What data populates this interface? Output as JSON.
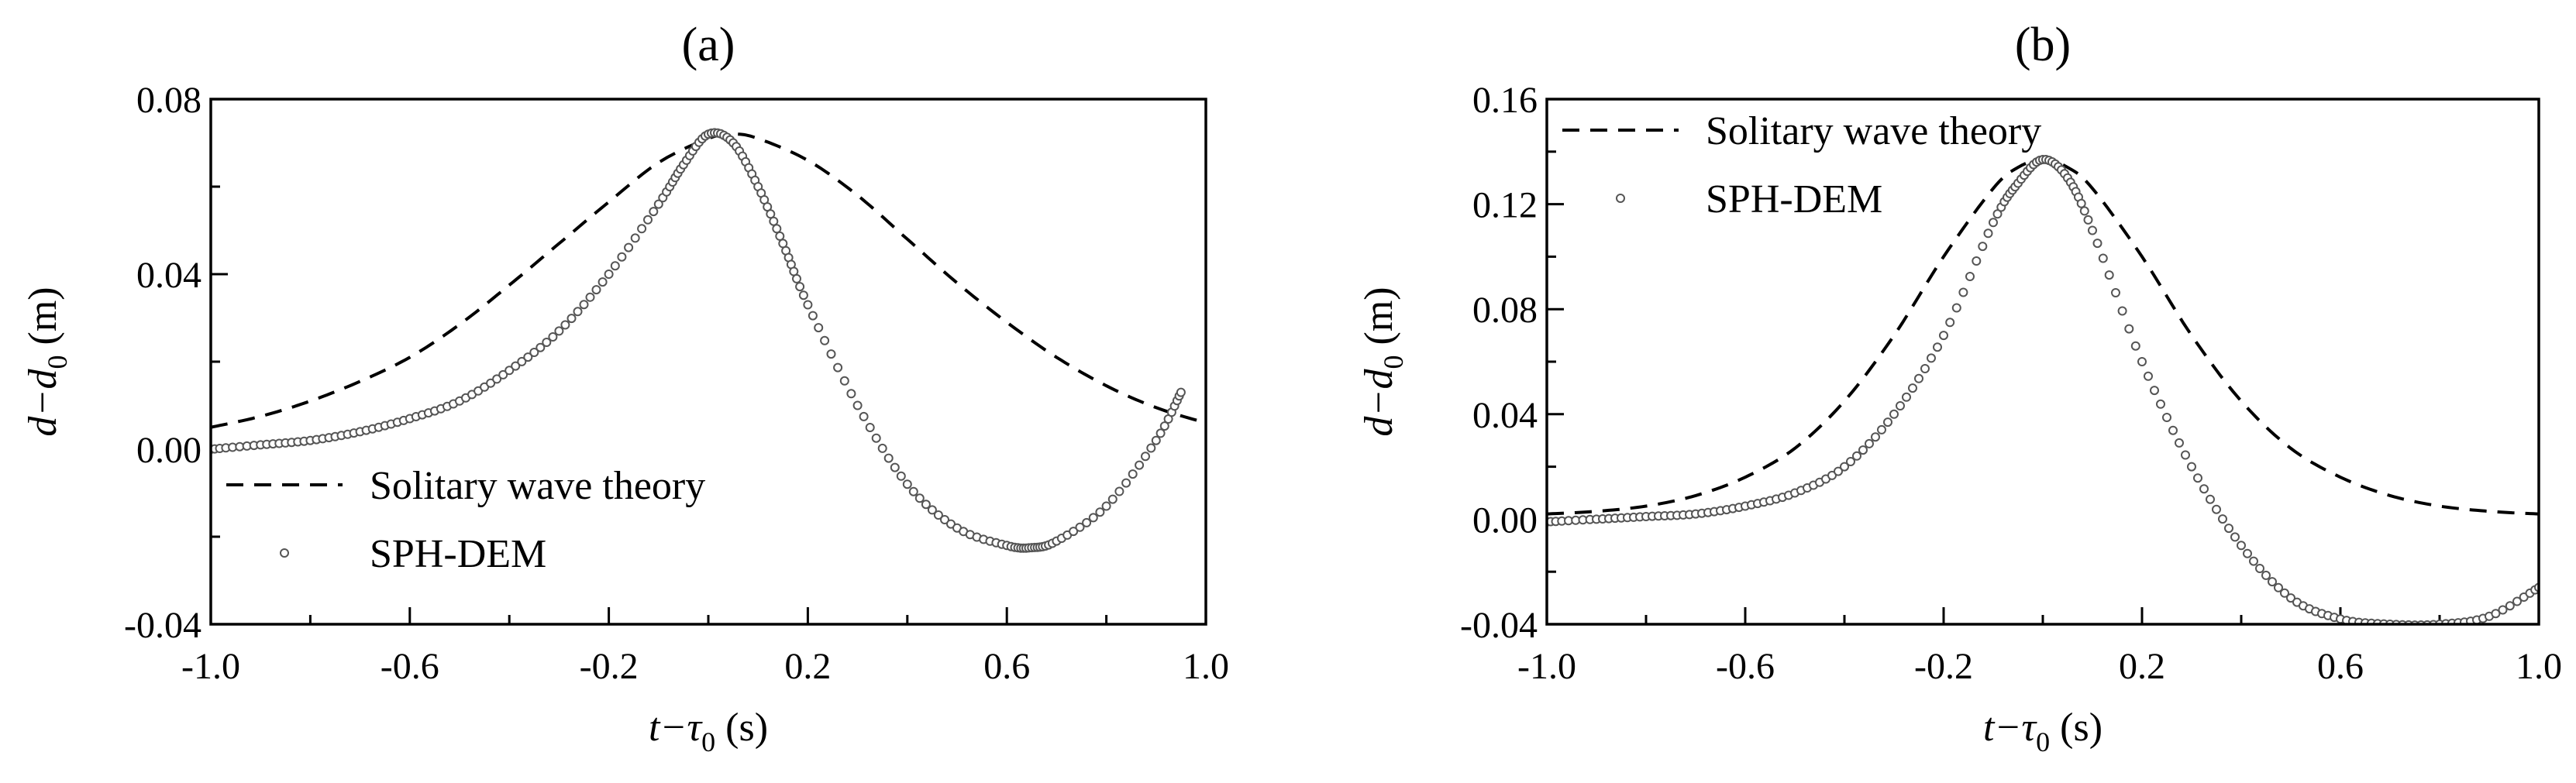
{
  "chart_data": [
    {
      "type": "line",
      "title": "(a)",
      "xlabel": "t−τ",
      "xlabel_sub": "0",
      "xlabel_unit": " (s)",
      "ylabel": "d−d",
      "ylabel_sub": "0",
      "ylabel_unit": " (m)",
      "xlim": [
        -1.0,
        1.0
      ],
      "ylim": [
        -0.04,
        0.08
      ],
      "x_ticks": [
        "-1.0",
        "-0.6",
        "-0.2",
        "0.2",
        "0.6",
        "1.0"
      ],
      "y_ticks": [
        "-0.04",
        "0.00",
        "0.04",
        "0.08"
      ],
      "legend_position": "lower-left",
      "series": [
        {
          "name": "Solitary wave theory",
          "style": "dashed-line",
          "x": [
            -1.0,
            -0.9,
            -0.8,
            -0.7,
            -0.6,
            -0.5,
            -0.4,
            -0.3,
            -0.2,
            -0.1,
            0.0,
            0.05,
            0.1,
            0.2,
            0.3,
            0.4,
            0.5,
            0.6,
            0.7,
            0.8,
            0.9,
            1.0
          ],
          "y": [
            0.005,
            0.0075,
            0.011,
            0.0155,
            0.021,
            0.0285,
            0.0375,
            0.047,
            0.0565,
            0.0655,
            0.071,
            0.072,
            0.071,
            0.066,
            0.058,
            0.048,
            0.038,
            0.029,
            0.021,
            0.0145,
            0.0095,
            0.006
          ]
        },
        {
          "name": "SPH-DEM",
          "style": "open-circles",
          "x": [
            -1.0,
            -0.9,
            -0.8,
            -0.7,
            -0.6,
            -0.5,
            -0.4,
            -0.3,
            -0.2,
            -0.1,
            -0.05,
            0.0,
            0.05,
            0.1,
            0.15,
            0.2,
            0.3,
            0.4,
            0.5,
            0.6,
            0.65,
            0.7,
            0.8,
            0.9,
            0.95
          ],
          "y": [
            0.0,
            0.001,
            0.002,
            0.004,
            0.007,
            0.011,
            0.018,
            0.027,
            0.04,
            0.056,
            0.065,
            0.072,
            0.07,
            0.06,
            0.047,
            0.033,
            0.01,
            -0.008,
            -0.018,
            -0.022,
            -0.0225,
            -0.021,
            -0.013,
            0.002,
            0.013
          ]
        }
      ]
    },
    {
      "type": "line",
      "title": "(b)",
      "xlabel": "t−τ",
      "xlabel_sub": "0",
      "xlabel_unit": " (s)",
      "ylabel": "d−d",
      "ylabel_sub": "0",
      "ylabel_unit": " (m)",
      "xlim": [
        -1.0,
        1.0
      ],
      "ylim": [
        -0.04,
        0.16
      ],
      "x_ticks": [
        "-1.0",
        "-0.6",
        "-0.2",
        "0.2",
        "0.6",
        "1.0"
      ],
      "y_ticks": [
        "-0.04",
        "0.00",
        "0.04",
        "0.08",
        "0.12",
        "0.16"
      ],
      "legend_position": "top-left",
      "series": [
        {
          "name": "Solitary wave theory",
          "style": "dashed-line",
          "x": [
            -1.0,
            -0.9,
            -0.8,
            -0.7,
            -0.6,
            -0.5,
            -0.4,
            -0.3,
            -0.2,
            -0.1,
            -0.05,
            0.0,
            0.05,
            0.1,
            0.2,
            0.3,
            0.4,
            0.5,
            0.6,
            0.7,
            0.8,
            0.9,
            1.0
          ],
          "y": [
            0.002,
            0.003,
            0.005,
            0.009,
            0.016,
            0.027,
            0.045,
            0.07,
            0.1,
            0.126,
            0.134,
            0.137,
            0.134,
            0.126,
            0.1,
            0.07,
            0.045,
            0.027,
            0.016,
            0.009,
            0.005,
            0.003,
            0.002
          ]
        },
        {
          "name": "SPH-DEM",
          "style": "open-circles",
          "x": [
            -1.0,
            -0.9,
            -0.8,
            -0.7,
            -0.6,
            -0.5,
            -0.4,
            -0.3,
            -0.2,
            -0.1,
            -0.05,
            0.0,
            0.05,
            0.1,
            0.2,
            0.3,
            0.4,
            0.5,
            0.6,
            0.7,
            0.8,
            0.9,
            1.0
          ],
          "y": [
            -0.001,
            0.0,
            0.001,
            0.002,
            0.005,
            0.01,
            0.02,
            0.04,
            0.07,
            0.113,
            0.128,
            0.137,
            0.13,
            0.11,
            0.06,
            0.02,
            -0.01,
            -0.03,
            -0.038,
            -0.04,
            -0.04,
            -0.037,
            -0.026
          ]
        }
      ]
    }
  ]
}
